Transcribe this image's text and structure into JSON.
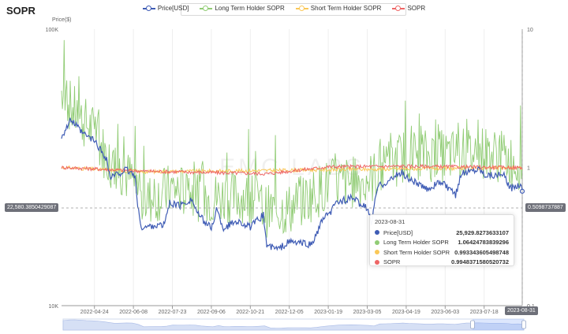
{
  "title": "SOPR",
  "legend": [
    {
      "name": "Price[USD]",
      "color": "#3f5cb5"
    },
    {
      "name": "Long Term Holder SOPR",
      "color": "#91cc75"
    },
    {
      "name": "Short Term Holder SOPR",
      "color": "#fac858"
    },
    {
      "name": "SOPR",
      "color": "#ee6666"
    }
  ],
  "watermark": "EMC LABS",
  "crosshair": {
    "left_label": "22,580.3850429087",
    "right_label": "0.5098737887",
    "date_label": "2023-08-31"
  },
  "tooltip": {
    "date": "2023-08-31",
    "rows": [
      {
        "name": "Price[USD]",
        "value": "25,929.8273633107",
        "color": "#3f5cb5"
      },
      {
        "name": "Long Term Holder SOPR",
        "value": "1.06424783839296",
        "color": "#91cc75"
      },
      {
        "name": "Short Term Holder SOPR",
        "value": "0.993343605498748",
        "color": "#fac858"
      },
      {
        "name": "SOPR",
        "value": "0.9948371580520732",
        "color": "#ee6666"
      }
    ]
  },
  "chart_data": {
    "type": "line",
    "x_ticks": [
      "2022-04-24",
      "2022-06-08",
      "2022-07-23",
      "2022-09-06",
      "2022-10-21",
      "2022-12-05",
      "2023-01-19",
      "2023-03-05",
      "2023-04-19",
      "2023-06-03",
      "2023-07-18"
    ],
    "x_range": [
      "2022-03-17",
      "2023-08-31"
    ],
    "y_left": {
      "name": "Price($)",
      "scale": "log",
      "range": [
        10000,
        100000
      ],
      "tick_labels": [
        "100K",
        "10K"
      ]
    },
    "y_right": {
      "scale": "log",
      "range": [
        0.1,
        10
      ],
      "tick_labels": [
        "10",
        "1",
        "0.1"
      ],
      "tick_values": [
        10,
        1,
        0.1
      ]
    },
    "series": [
      {
        "name": "Price[USD]",
        "axis": "left",
        "color": "#3f5cb5",
        "points": [
          [
            "2022-03-17",
            41000
          ],
          [
            "2022-03-28",
            47000
          ],
          [
            "2022-04-10",
            42000
          ],
          [
            "2022-04-24",
            39500
          ],
          [
            "2022-05-08",
            34000
          ],
          [
            "2022-05-12",
            29000
          ],
          [
            "2022-05-31",
            31000
          ],
          [
            "2022-06-10",
            29500
          ],
          [
            "2022-06-13",
            22500
          ],
          [
            "2022-06-18",
            19000
          ],
          [
            "2022-06-30",
            19500
          ],
          [
            "2022-07-13",
            19500
          ],
          [
            "2022-07-20",
            23500
          ],
          [
            "2022-08-01",
            23000
          ],
          [
            "2022-08-14",
            24300
          ],
          [
            "2022-08-22",
            21300
          ],
          [
            "2022-09-06",
            19000
          ],
          [
            "2022-09-12",
            22300
          ],
          [
            "2022-09-20",
            19000
          ],
          [
            "2022-10-05",
            20300
          ],
          [
            "2022-10-21",
            19200
          ],
          [
            "2022-11-05",
            21300
          ],
          [
            "2022-11-09",
            16500
          ],
          [
            "2022-11-22",
            16000
          ],
          [
            "2022-12-05",
            17000
          ],
          [
            "2022-12-20",
            16800
          ],
          [
            "2022-12-31",
            16600
          ],
          [
            "2023-01-14",
            20900
          ],
          [
            "2023-01-19",
            21100
          ],
          [
            "2023-01-29",
            23700
          ],
          [
            "2023-02-16",
            24500
          ],
          [
            "2023-03-05",
            22400
          ],
          [
            "2023-03-10",
            20000
          ],
          [
            "2023-03-17",
            27000
          ],
          [
            "2023-03-31",
            28400
          ],
          [
            "2023-04-14",
            30400
          ],
          [
            "2023-04-19",
            29000
          ],
          [
            "2023-04-26",
            28400
          ],
          [
            "2023-05-12",
            26300
          ],
          [
            "2023-05-28",
            28000
          ],
          [
            "2023-06-03",
            27200
          ],
          [
            "2023-06-15",
            25000
          ],
          [
            "2023-06-21",
            30000
          ],
          [
            "2023-07-13",
            31400
          ],
          [
            "2023-07-18",
            29900
          ],
          [
            "2023-08-10",
            29500
          ],
          [
            "2023-08-17",
            26500
          ],
          [
            "2023-08-29",
            27700
          ],
          [
            "2023-08-31",
            25929.8273633107
          ]
        ]
      },
      {
        "name": "Long Term Holder SOPR",
        "axis": "right",
        "color": "#91cc75",
        "points": [
          [
            "2022-03-17",
            3.4
          ],
          [
            "2022-04-01",
            2.5
          ],
          [
            "2022-04-24",
            1.8
          ],
          [
            "2022-05-10",
            1.1
          ],
          [
            "2022-06-08",
            0.8
          ],
          [
            "2022-06-18",
            0.55
          ],
          [
            "2022-07-23",
            0.7
          ],
          [
            "2022-09-06",
            0.6
          ],
          [
            "2022-10-21",
            0.62
          ],
          [
            "2022-11-10",
            0.48
          ],
          [
            "2022-12-05",
            0.5
          ],
          [
            "2023-01-19",
            0.75
          ],
          [
            "2023-03-05",
            0.8
          ],
          [
            "2023-04-19",
            1.25
          ],
          [
            "2023-06-03",
            1.2
          ],
          [
            "2023-07-18",
            1.3
          ],
          [
            "2023-08-31",
            1.06424783839296
          ]
        ]
      },
      {
        "name": "Short Term Holder SOPR",
        "axis": "right",
        "color": "#fac858",
        "points": [
          [
            "2022-03-17",
            1.0
          ],
          [
            "2022-06-18",
            0.93
          ],
          [
            "2022-11-10",
            0.95
          ],
          [
            "2023-03-10",
            0.97
          ],
          [
            "2023-08-31",
            0.993343605498748
          ]
        ]
      },
      {
        "name": "SOPR",
        "axis": "right",
        "color": "#ee6666",
        "points": [
          [
            "2022-03-17",
            1.0
          ],
          [
            "2022-06-18",
            0.94
          ],
          [
            "2022-11-10",
            0.9
          ],
          [
            "2023-01-19",
            1.01
          ],
          [
            "2023-04-19",
            1.02
          ],
          [
            "2023-08-31",
            0.9948371580520732
          ]
        ]
      }
    ],
    "grid": true,
    "legend_position": "top-center"
  }
}
